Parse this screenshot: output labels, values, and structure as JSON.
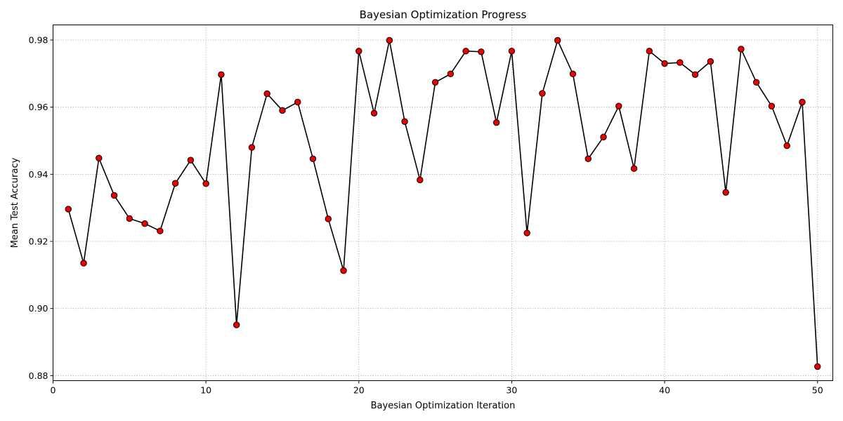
{
  "chart_data": {
    "type": "line",
    "title": "Bayesian Optimization Progress",
    "xlabel": "Bayesian Optimization Iteration",
    "ylabel": "Mean Test Accuracy",
    "xlim": [
      0,
      51
    ],
    "ylim": [
      0.8785,
      0.9845
    ],
    "xticks": [
      0,
      10,
      20,
      30,
      40,
      50
    ],
    "yticks": [
      0.88,
      0.9,
      0.92,
      0.94,
      0.96,
      0.98
    ],
    "xtick_labels": [
      "0",
      "10",
      "20",
      "30",
      "40",
      "50"
    ],
    "ytick_labels": [
      "0.88",
      "0.90",
      "0.92",
      "0.94",
      "0.96",
      "0.98"
    ],
    "grid": true,
    "line_color": "#000000",
    "marker_color": "#ee0000",
    "x": [
      1,
      2,
      3,
      4,
      5,
      6,
      7,
      8,
      9,
      10,
      11,
      12,
      13,
      14,
      15,
      16,
      17,
      18,
      19,
      20,
      21,
      22,
      23,
      24,
      25,
      26,
      27,
      28,
      29,
      30,
      31,
      32,
      33,
      34,
      35,
      36,
      37,
      38,
      39,
      40,
      41,
      42,
      43,
      44,
      45,
      46,
      47,
      48,
      49,
      50
    ],
    "y": [
      0.9296,
      0.9135,
      0.9448,
      0.9337,
      0.9268,
      0.9253,
      0.9231,
      0.9373,
      0.9442,
      0.9372,
      0.9697,
      0.8951,
      0.948,
      0.964,
      0.959,
      0.9615,
      0.9446,
      0.9267,
      0.9113,
      0.9767,
      0.9582,
      0.9799,
      0.9557,
      0.9383,
      0.9674,
      0.9699,
      0.9767,
      0.9765,
      0.9554,
      0.9767,
      0.9225,
      0.9641,
      0.9799,
      0.9699,
      0.9446,
      0.9511,
      0.9603,
      0.9417,
      0.9767,
      0.973,
      0.9733,
      0.9697,
      0.9736,
      0.9346,
      0.9773,
      0.9674,
      0.9603,
      0.9485,
      0.9615,
      0.8827
    ]
  }
}
